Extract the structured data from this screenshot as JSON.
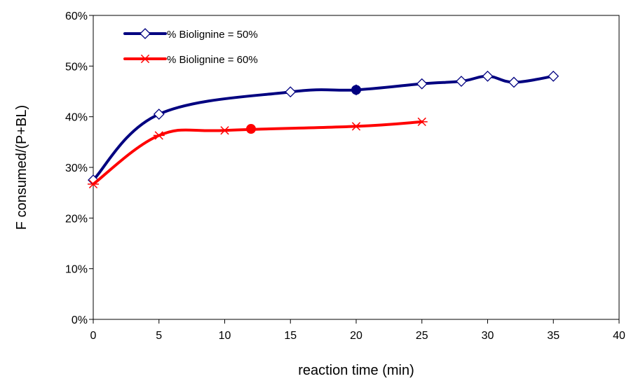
{
  "chart_data": {
    "type": "line",
    "xlabel": "reaction time (min)",
    "ylabel": "F consumed/(P+BL)",
    "xlim": [
      0,
      40
    ],
    "ylim": [
      0,
      0.6
    ],
    "x_ticks": [
      "0",
      "5",
      "10",
      "15",
      "20",
      "25",
      "30",
      "35",
      "40"
    ],
    "y_ticks": [
      "0%",
      "10%",
      "20%",
      "30%",
      "40%",
      "50%",
      "60%"
    ],
    "grid": false,
    "legend_position": "top-left",
    "series": [
      {
        "name": "% Biolignine = 50%",
        "color": "#000080",
        "marker": "diamond",
        "x": [
          0,
          5,
          15,
          20,
          25,
          28,
          30,
          32,
          35
        ],
        "y": [
          0.275,
          0.405,
          0.449,
          0.453,
          0.465,
          0.47,
          0.48,
          0.468,
          0.48
        ],
        "highlight_point": {
          "x": 20,
          "y": 0.453
        }
      },
      {
        "name": "% Biolignine = 60%",
        "color": "#FF0000",
        "marker": "asterisk",
        "x": [
          0,
          5,
          10,
          20,
          25
        ],
        "y": [
          0.267,
          0.363,
          0.373,
          0.381,
          0.39
        ],
        "highlight_point": {
          "x": 12,
          "y": 0.376
        }
      }
    ]
  }
}
